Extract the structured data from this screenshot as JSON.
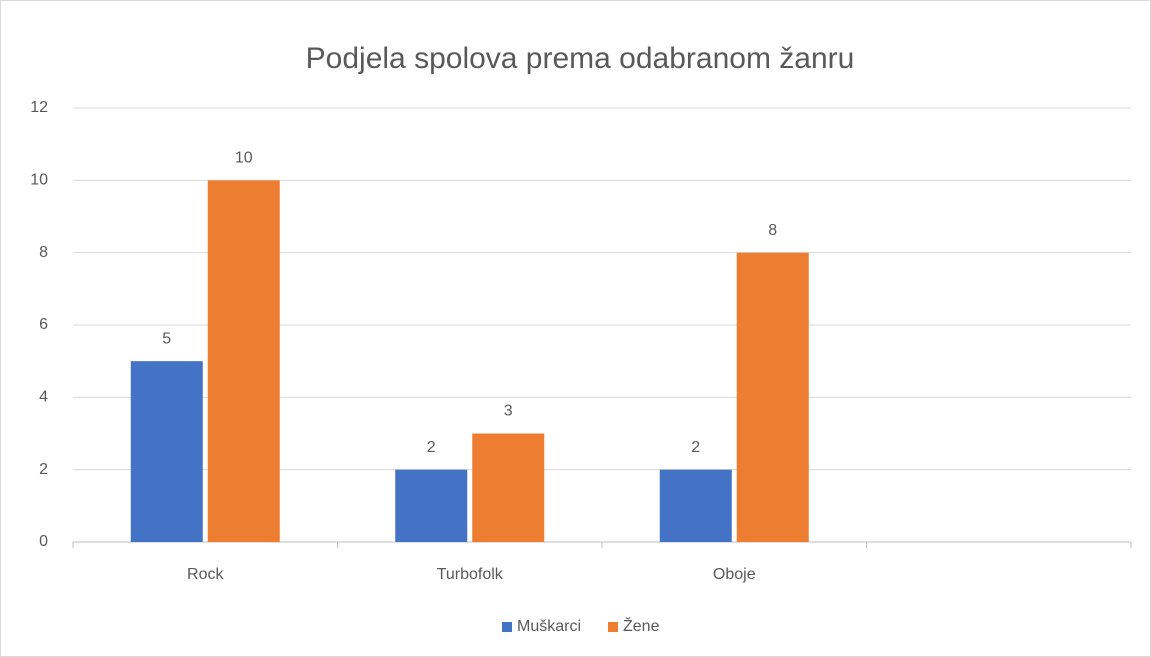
{
  "chart_data": {
    "type": "bar",
    "title": "Podjela spolova prema odabranom žanru",
    "categories": [
      "Rock",
      "Turbofolk",
      "Oboje",
      null
    ],
    "series": [
      {
        "name": "Muškarci",
        "color": "#4472c4",
        "values": [
          5,
          2,
          2,
          null
        ]
      },
      {
        "name": "Žene",
        "color": "#ed7d31",
        "values": [
          10,
          3,
          8,
          null
        ]
      }
    ],
    "ylim": [
      0,
      12
    ],
    "yticks": [
      0,
      2,
      4,
      6,
      8,
      10,
      12
    ],
    "grid": true,
    "legend": "bottom"
  }
}
